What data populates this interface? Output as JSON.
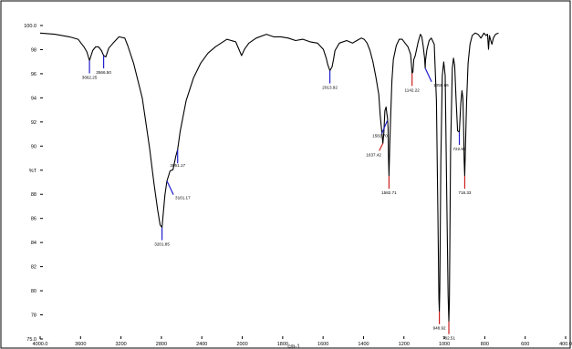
{
  "chart_data": {
    "type": "line",
    "xlabel": "cm-1",
    "ylabel": "%T",
    "xlim": [
      4000,
      400
    ],
    "ylim": [
      75,
      100
    ],
    "x_ticks": [
      "4000.0",
      "3600",
      "3200",
      "2800",
      "2400",
      "2000",
      "1800",
      "1600",
      "1400",
      "1200",
      "1000",
      "800",
      "600",
      "400.0"
    ],
    "y_ticks": [
      "75.0",
      "78",
      "80",
      "82",
      "84",
      "86",
      "88",
      "%T",
      "90",
      "92",
      "94",
      "96",
      "98",
      "100.0"
    ],
    "series": [
      {
        "values": [
          [
            4000,
            99.4
          ],
          [
            3900,
            99.3
          ],
          [
            3800,
            99.1
          ],
          [
            3740,
            98.9
          ],
          [
            3700,
            98.3
          ],
          [
            3680,
            97.9
          ],
          [
            3662,
            97.2
          ],
          [
            3640,
            98.0
          ],
          [
            3620,
            98.3
          ],
          [
            3600,
            98.3
          ],
          [
            3580,
            98.0
          ],
          [
            3565,
            97.6
          ],
          [
            3550,
            97.5
          ],
          [
            3530,
            98.2
          ],
          [
            3500,
            98.6
          ],
          [
            3460,
            99.1
          ],
          [
            3420,
            99.0
          ],
          [
            3400,
            98.4
          ],
          [
            3360,
            97.0
          ],
          [
            3300,
            94.2
          ],
          [
            3250,
            90.2
          ],
          [
            3220,
            87.4
          ],
          [
            3195,
            85.3
          ],
          [
            3178,
            84.1
          ],
          [
            3165,
            83.9
          ],
          [
            3155,
            85.2
          ],
          [
            3145,
            86.5
          ],
          [
            3131,
            87.6
          ],
          [
            3110,
            88.4
          ],
          [
            3090,
            88.5
          ],
          [
            3070,
            89.6
          ],
          [
            3058,
            90.1
          ],
          [
            3040,
            91.6
          ],
          [
            3000,
            94.0
          ],
          [
            2950,
            95.8
          ],
          [
            2900,
            97.0
          ],
          [
            2850,
            97.8
          ],
          [
            2800,
            98.3
          ],
          [
            2720,
            98.9
          ],
          [
            2660,
            98.7
          ],
          [
            2620,
            97.6
          ],
          [
            2600,
            98.1
          ],
          [
            2570,
            98.6
          ],
          [
            2520,
            99.0
          ],
          [
            2450,
            99.3
          ],
          [
            2400,
            99.1
          ],
          [
            2350,
            99.1
          ],
          [
            2300,
            99.0
          ],
          [
            2250,
            98.8
          ],
          [
            2200,
            98.9
          ],
          [
            2150,
            98.7
          ],
          [
            2100,
            98.6
          ],
          [
            2060,
            98.1
          ],
          [
            2040,
            97.4
          ],
          [
            2030,
            96.9
          ],
          [
            2015,
            96.4
          ],
          [
            2000,
            96.7
          ],
          [
            1990,
            97.3
          ],
          [
            1980,
            98.0
          ],
          [
            1950,
            98.6
          ],
          [
            1900,
            98.8
          ],
          [
            1860,
            98.6
          ],
          [
            1830,
            98.8
          ],
          [
            1800,
            99.0
          ],
          [
            1780,
            98.9
          ],
          [
            1760,
            98.6
          ],
          [
            1740,
            98.0
          ],
          [
            1720,
            97.1
          ],
          [
            1700,
            95.9
          ],
          [
            1680,
            94.5
          ],
          [
            1670,
            92.8
          ],
          [
            1660,
            91.6
          ],
          [
            1652,
            90.6
          ],
          [
            1645,
            91.5
          ],
          [
            1638,
            93.2
          ],
          [
            1630,
            93.5
          ],
          [
            1625,
            93.0
          ],
          [
            1620,
            92.6
          ],
          [
            1616,
            91.8
          ],
          [
            1613,
            89.3
          ],
          [
            1610,
            88.0
          ],
          [
            1605,
            90.4
          ],
          [
            1598,
            92.9
          ],
          [
            1590,
            95.6
          ],
          [
            1580,
            97.3
          ],
          [
            1560,
            98.4
          ],
          [
            1540,
            98.9
          ],
          [
            1520,
            98.9
          ],
          [
            1500,
            98.6
          ],
          [
            1480,
            98.3
          ],
          [
            1462,
            97.7
          ],
          [
            1452,
            96.2
          ],
          [
            1446,
            96.3
          ],
          [
            1440,
            97.3
          ],
          [
            1430,
            97.6
          ],
          [
            1410,
            98.7
          ],
          [
            1395,
            99.3
          ],
          [
            1385,
            99.1
          ],
          [
            1375,
            98.3
          ],
          [
            1366,
            97.4
          ],
          [
            1362,
            96.6
          ],
          [
            1360,
            97.2
          ],
          [
            1350,
            98.1
          ],
          [
            1335,
            98.8
          ],
          [
            1320,
            99.0
          ],
          [
            1300,
            98.5
          ],
          [
            1285,
            94.0
          ],
          [
            1275,
            85.0
          ],
          [
            1268,
            78.2
          ],
          [
            1265,
            77.2
          ],
          [
            1262,
            79.0
          ],
          [
            1255,
            89.0
          ],
          [
            1245,
            96.0
          ],
          [
            1235,
            97.1
          ],
          [
            1225,
            96.0
          ],
          [
            1215,
            87.0
          ],
          [
            1205,
            78.5
          ],
          [
            1200,
            76.4
          ],
          [
            1196,
            78.0
          ],
          [
            1188,
            90.0
          ],
          [
            1176,
            96.6
          ],
          [
            1168,
            97.4
          ],
          [
            1160,
            96.8
          ],
          [
            1150,
            94.0
          ],
          [
            1140,
            91.6
          ],
          [
            1128,
            91.5
          ],
          [
            1118,
            93.8
          ],
          [
            1110,
            94.8
          ],
          [
            1104,
            94.2
          ],
          [
            1099,
            91.8
          ],
          [
            1095,
            89.2
          ],
          [
            1091,
            88.0
          ],
          [
            1087,
            90.0
          ],
          [
            1078,
            94.0
          ],
          [
            1068,
            97.0
          ],
          [
            1055,
            98.5
          ],
          [
            1040,
            99.2
          ],
          [
            1020,
            99.4
          ],
          [
            1000,
            99.3
          ],
          [
            980,
            99.0
          ],
          [
            960,
            99.4
          ],
          [
            945,
            99.2
          ],
          [
            935,
            99.3
          ],
          [
            928,
            98.1
          ],
          [
            922,
            99.2
          ],
          [
            915,
            98.9
          ],
          [
            905,
            98.5
          ],
          [
            895,
            99.0
          ],
          [
            880,
            99.3
          ],
          [
            860,
            99.4
          ]
        ]
      }
    ],
    "peaks": [
      {
        "x": 3662,
        "y": 97.2,
        "label": "3662.25",
        "color": "#1f1fcf",
        "dir": "down"
      },
      {
        "x": 3565,
        "y": 97.6,
        "label": "3566.50",
        "color": "#1f1fcf",
        "dir": "down"
      },
      {
        "x": 3165,
        "y": 83.9,
        "label": "3201.85",
        "color": "#1f1fcf",
        "dir": "down"
      },
      {
        "x": 3131,
        "y": 87.6,
        "label": "3161.17",
        "color": "#1f1fcf",
        "dir": "diag"
      },
      {
        "x": 3058,
        "y": 90.1,
        "label": "3051.17",
        "color": "#1f1fcf",
        "dir": "up"
      },
      {
        "x": 2015,
        "y": 96.4,
        "label": "2013.92",
        "color": "#1f1fcf",
        "dir": "down"
      },
      {
        "x": 1652,
        "y": 90.6,
        "label": "1637.42",
        "color": "#cc1f1f",
        "dir": "left"
      },
      {
        "x": 1622,
        "y": 92.4,
        "label": "1582.70",
        "color": "#1f1fcf",
        "dir": "diag2"
      },
      {
        "x": 1610,
        "y": 88.0,
        "label": "1582.71",
        "color": "#cc1f1f",
        "dir": "down"
      },
      {
        "x": 1452,
        "y": 96.2,
        "label": "1142.22",
        "color": "#cc1f1f",
        "dir": "down"
      },
      {
        "x": 1362,
        "y": 96.6,
        "label": "1055.66",
        "color": "#1f1fcf",
        "dir": "diag"
      },
      {
        "x": 1265,
        "y": 77.2,
        "label": "948.92",
        "color": "#cc1f1f",
        "dir": "down"
      },
      {
        "x": 1200,
        "y": 76.4,
        "label": "782.51",
        "color": "#cc1f1f",
        "dir": "down"
      },
      {
        "x": 1128,
        "y": 91.5,
        "label": "722.99",
        "color": "#1f1fcf",
        "dir": "down"
      },
      {
        "x": 1091,
        "y": 88.0,
        "label": "718.33",
        "color": "#cc1f1f",
        "dir": "down"
      }
    ]
  }
}
